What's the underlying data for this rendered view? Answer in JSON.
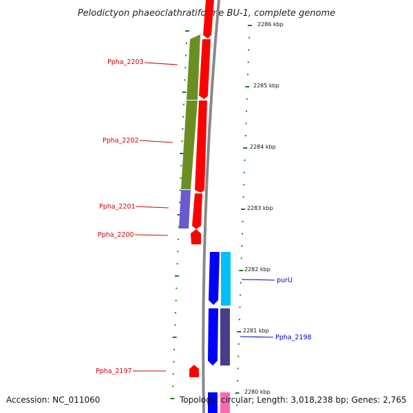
{
  "title": "Pelodictyon phaeoclathratiforme BU-1, complete genome",
  "scale_ticks": [
    {
      "label": "2286 kbp",
      "position_kbp": 2286
    },
    {
      "label": "2285 kbp",
      "position_kbp": 2285
    },
    {
      "label": "2284 kbp",
      "position_kbp": 2284
    },
    {
      "label": "2283 kbp",
      "position_kbp": 2283
    },
    {
      "label": "2282 kbp",
      "position_kbp": 2282
    },
    {
      "label": "2281 kbp",
      "position_kbp": 2281
    },
    {
      "label": "2280 kbp",
      "position_kbp": 2280
    }
  ],
  "genes": [
    {
      "name": "Ppha_2203",
      "strand": "-",
      "color": "#6b8e23"
    },
    {
      "name": "Ppha_2202",
      "strand": "-",
      "color": "#6b8e23"
    },
    {
      "name": "Ppha_2201",
      "strand": "-",
      "color": "#6a5acd"
    },
    {
      "name": "Ppha_2200",
      "strand": "-",
      "color": "#ff0000"
    },
    {
      "name": "Ppha_2197",
      "strand": "-",
      "color": "#ff0000"
    },
    {
      "name": "purU",
      "strand": "+",
      "color": "#00bfff"
    },
    {
      "name": "Ppha_2198",
      "strand": "+",
      "color": "#483d8b"
    }
  ],
  "colors": {
    "backbone": "#888888",
    "minus_strand_label": "#cc0000",
    "plus_strand_label": "#0000cc",
    "tick": "#1a7a1a",
    "cds_minus": "#ff0000",
    "cds_plus": "#0000ff"
  },
  "footer": {
    "accession": "Accession: NC_011060",
    "topology": "Topology: circular; Length: 3,018,238 bp; Genes: 2,765"
  }
}
